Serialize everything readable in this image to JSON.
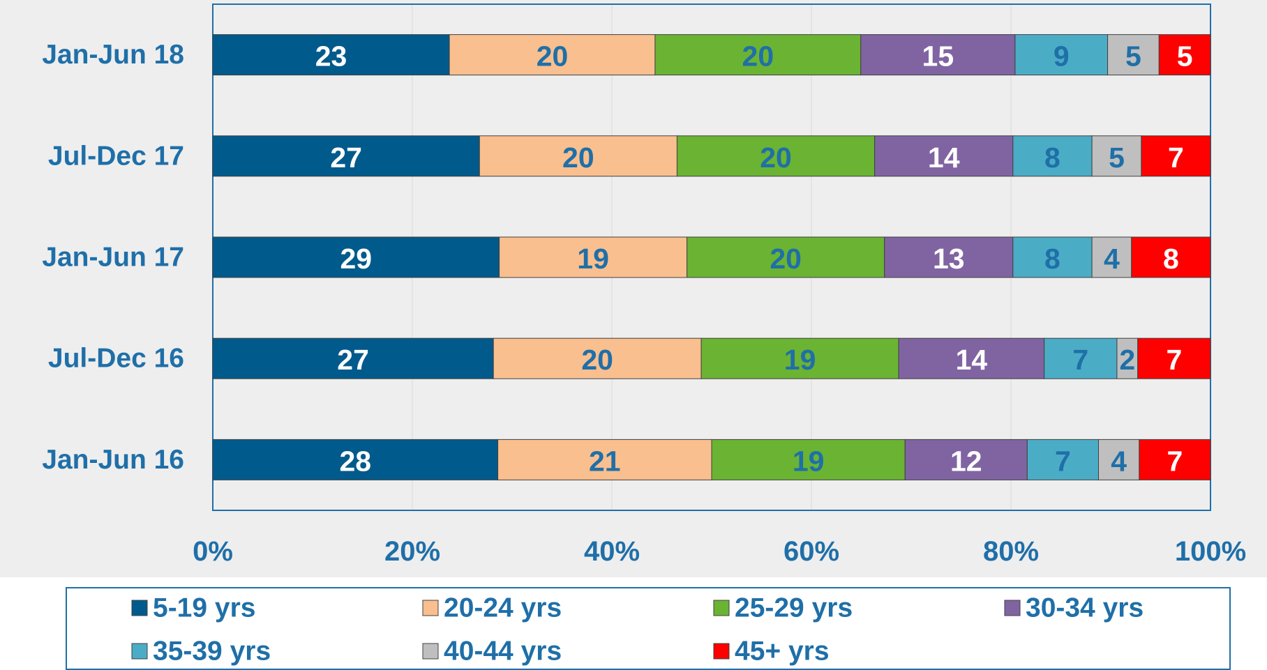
{
  "chart_data": {
    "type": "bar",
    "orientation": "horizontal",
    "stacked": "percent",
    "categories": [
      "Jan-Jun 18",
      "Jul-Dec 17",
      "Jan-Jun 17",
      "Jul-Dec 16",
      "Jan-Jun 16"
    ],
    "series": [
      {
        "name": "5-19 yrs",
        "color": "#005a8c",
        "label_color": "#ffffff",
        "values": [
          23,
          27,
          29,
          27,
          28
        ]
      },
      {
        "name": "20-24 yrs",
        "color": "#f9bf8f",
        "label_color": "#1f6fa8",
        "values": [
          20,
          20,
          19,
          20,
          21
        ]
      },
      {
        "name": "25-29 yrs",
        "color": "#6bb333",
        "label_color": "#1f6fa8",
        "values": [
          20,
          20,
          20,
          19,
          19
        ]
      },
      {
        "name": "30-34 yrs",
        "color": "#8064a2",
        "label_color": "#ffffff",
        "values": [
          15,
          14,
          13,
          14,
          12
        ]
      },
      {
        "name": "35-39 yrs",
        "color": "#4bacc6",
        "label_color": "#1f6fa8",
        "values": [
          9,
          8,
          8,
          7,
          7
        ]
      },
      {
        "name": "40-44 yrs",
        "color": "#bfbfbf",
        "label_color": "#1f6fa8",
        "values": [
          5,
          5,
          4,
          2,
          4
        ]
      },
      {
        "name": "45+ yrs",
        "color": "#ff0000",
        "label_color": "#ffffff",
        "values": [
          5,
          7,
          8,
          7,
          7
        ]
      }
    ],
    "xlim": [
      0,
      100
    ],
    "xticks": [
      {
        "value": 0,
        "label": "0%"
      },
      {
        "value": 20,
        "label": "20%"
      },
      {
        "value": 40,
        "label": "40%"
      },
      {
        "value": 60,
        "label": "60%"
      },
      {
        "value": 80,
        "label": "80%"
      },
      {
        "value": 100,
        "label": "100%"
      }
    ],
    "grid": true,
    "legend": "bottom"
  }
}
